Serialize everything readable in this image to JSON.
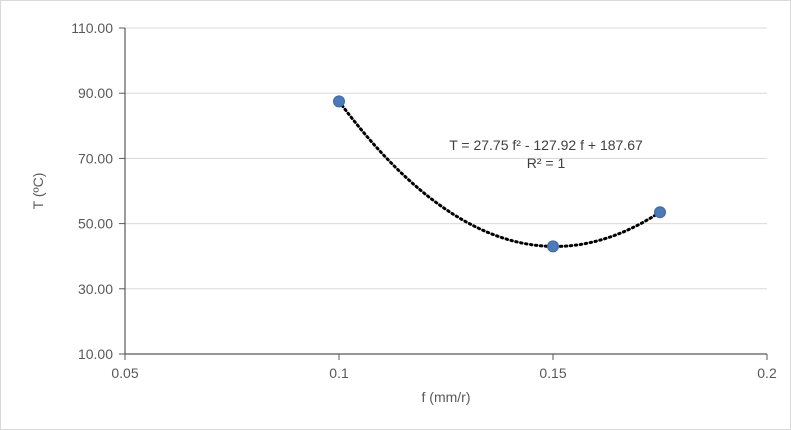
{
  "chart_data": {
    "type": "scatter",
    "xlabel": "f (mm/r)",
    "ylabel": "T (ºC)",
    "xlim": [
      0.05,
      0.2
    ],
    "ylim": [
      10,
      110
    ],
    "x_ticks": [
      "0.05",
      "0.1",
      "0.15",
      "0.2"
    ],
    "y_ticks": [
      "10.00",
      "30.00",
      "50.00",
      "70.00",
      "90.00",
      "110.00"
    ],
    "grid": true,
    "series": [
      {
        "x": [
          0.1,
          0.15,
          0.175
        ],
        "y": [
          87.5,
          43.0,
          53.5
        ],
        "color": "#4a7ab8"
      }
    ],
    "trendline": {
      "kind": "polynomial",
      "coefficients": [
        27.75,
        -127.92,
        187.67
      ],
      "x_range": [
        0.1,
        0.175
      ],
      "style": "dotted",
      "color": "#000000"
    },
    "annotation": {
      "equation": "T = 27.75 f² - 127.92 f + 187.67",
      "r_squared": "R² = 1"
    }
  }
}
